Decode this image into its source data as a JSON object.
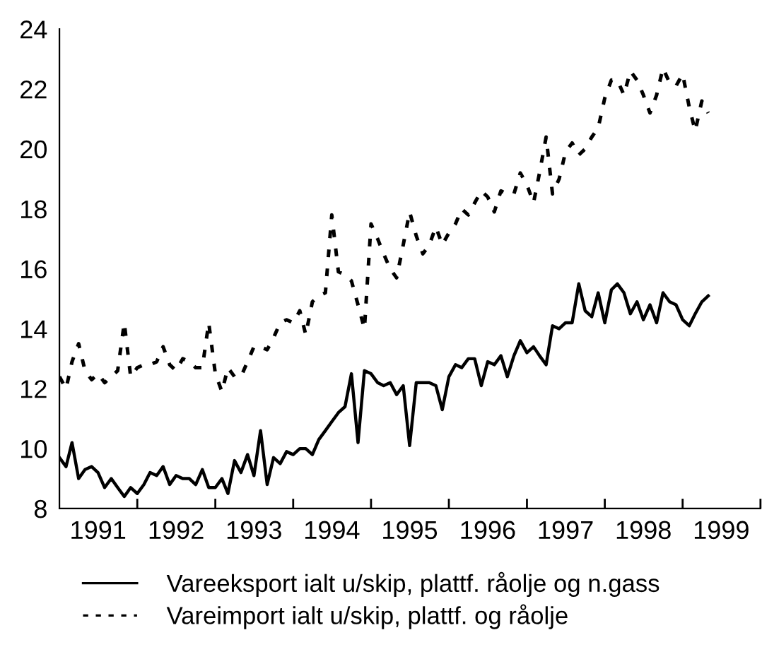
{
  "chart_data": {
    "type": "line",
    "x": [
      "1991-01",
      "1991-02",
      "1991-03",
      "1991-04",
      "1991-05",
      "1991-06",
      "1991-07",
      "1991-08",
      "1991-09",
      "1991-10",
      "1991-11",
      "1991-12",
      "1992-01",
      "1992-02",
      "1992-03",
      "1992-04",
      "1992-05",
      "1992-06",
      "1992-07",
      "1992-08",
      "1992-09",
      "1992-10",
      "1992-11",
      "1992-12",
      "1993-01",
      "1993-02",
      "1993-03",
      "1993-04",
      "1993-05",
      "1993-06",
      "1993-07",
      "1993-08",
      "1993-09",
      "1993-10",
      "1993-11",
      "1993-12",
      "1994-01",
      "1994-02",
      "1994-03",
      "1994-04",
      "1994-05",
      "1994-06",
      "1994-07",
      "1994-08",
      "1994-09",
      "1994-10",
      "1994-11",
      "1994-12",
      "1995-01",
      "1995-02",
      "1995-03",
      "1995-04",
      "1995-05",
      "1995-06",
      "1995-07",
      "1995-08",
      "1995-09",
      "1995-10",
      "1995-11",
      "1995-12",
      "1996-01",
      "1996-02",
      "1996-03",
      "1996-04",
      "1996-05",
      "1996-06",
      "1996-07",
      "1996-08",
      "1996-09",
      "1996-10",
      "1996-11",
      "1996-12",
      "1997-01",
      "1997-02",
      "1997-03",
      "1997-04",
      "1997-05",
      "1997-06",
      "1997-07",
      "1997-08",
      "1997-09",
      "1997-10",
      "1997-11",
      "1997-12",
      "1998-01",
      "1998-02",
      "1998-03",
      "1998-04",
      "1998-05",
      "1998-06",
      "1998-07",
      "1998-08",
      "1998-09",
      "1998-10",
      "1998-11",
      "1998-12",
      "1999-01",
      "1999-02",
      "1999-03",
      "1999-04",
      "1999-05"
    ],
    "series": [
      {
        "name": "Vareeksport ialt u/skip, plattf. råolje og n.gass",
        "color": "#000000",
        "line_style": "solid",
        "values": [
          9.7,
          9.4,
          10.2,
          9.0,
          9.3,
          9.4,
          9.2,
          8.7,
          9.0,
          8.7,
          8.4,
          8.7,
          8.5,
          8.8,
          9.2,
          9.1,
          9.4,
          8.8,
          9.1,
          9.0,
          9.0,
          8.8,
          9.3,
          8.7,
          8.7,
          9.0,
          8.5,
          9.6,
          9.2,
          9.8,
          9.1,
          10.6,
          8.8,
          9.7,
          9.5,
          9.9,
          9.8,
          10.0,
          10.0,
          9.8,
          10.3,
          10.6,
          10.9,
          11.2,
          11.4,
          12.5,
          10.2,
          12.6,
          12.5,
          12.2,
          12.1,
          12.2,
          11.8,
          12.1,
          10.1,
          12.2,
          12.2,
          12.2,
          12.1,
          11.3,
          12.4,
          12.8,
          12.7,
          13.0,
          13.0,
          12.1,
          12.9,
          12.8,
          13.1,
          12.4,
          13.1,
          13.6,
          13.2,
          13.4,
          13.1,
          12.8,
          14.1,
          14.0,
          14.2,
          14.2,
          15.5,
          14.6,
          14.4,
          15.2,
          14.2,
          15.3,
          15.5,
          15.2,
          14.5,
          14.9,
          14.3,
          14.8,
          14.2,
          15.2,
          14.9,
          14.8,
          14.3,
          14.1,
          14.5,
          14.9,
          15.1
        ]
      },
      {
        "name": "Vareimport ialt u/skip, plattf. og råolje",
        "color": "#000000",
        "line_style": "dashed",
        "values": [
          12.4,
          12.0,
          12.9,
          13.5,
          12.6,
          12.3,
          12.5,
          12.2,
          12.4,
          12.6,
          14.2,
          12.4,
          12.7,
          12.8,
          12.8,
          12.9,
          13.4,
          12.8,
          12.6,
          13.0,
          12.9,
          12.7,
          12.7,
          14.2,
          12.5,
          11.9,
          12.7,
          12.4,
          12.4,
          12.9,
          13.4,
          13.4,
          13.3,
          13.7,
          14.2,
          14.3,
          14.2,
          14.6,
          13.8,
          14.9,
          15.1,
          15.2,
          17.8,
          15.9,
          15.8,
          15.6,
          14.8,
          14.0,
          17.5,
          17.0,
          16.5,
          16.0,
          15.7,
          16.8,
          17.9,
          17.1,
          16.5,
          16.8,
          17.4,
          16.8,
          17.2,
          17.5,
          18.0,
          17.8,
          18.2,
          18.6,
          18.4,
          17.9,
          18.6,
          18.5,
          18.5,
          19.2,
          18.8,
          18.2,
          19.2,
          20.4,
          18.5,
          19.0,
          19.9,
          20.2,
          19.8,
          20.0,
          20.4,
          20.7,
          21.7,
          22.3,
          22.3,
          21.8,
          22.6,
          22.3,
          21.8,
          21.2,
          21.8,
          22.7,
          22.2,
          22.1,
          22.5,
          21.4,
          20.6,
          21.6,
          21.2
        ]
      }
    ],
    "xlim": [
      "1991-01",
      "2000-01"
    ],
    "xticks": [
      {
        "value": "1991-07",
        "label": "1991"
      },
      {
        "value": "1992-07",
        "label": "1992"
      },
      {
        "value": "1993-07",
        "label": "1993"
      },
      {
        "value": "1994-07",
        "label": "1994"
      },
      {
        "value": "1995-07",
        "label": "1995"
      },
      {
        "value": "1996-07",
        "label": "1996"
      },
      {
        "value": "1997-07",
        "label": "1997"
      },
      {
        "value": "1998-07",
        "label": "1998"
      },
      {
        "value": "1999-07",
        "label": "1999"
      },
      {
        "value": "1992-01",
        "label": null
      },
      {
        "value": "1993-01",
        "label": null
      },
      {
        "value": "1994-01",
        "label": null
      },
      {
        "value": "1995-01",
        "label": null
      },
      {
        "value": "1996-01",
        "label": null
      },
      {
        "value": "1997-01",
        "label": null
      },
      {
        "value": "1998-01",
        "label": null
      },
      {
        "value": "1999-01",
        "label": null
      },
      {
        "value": "2000-01",
        "label": null
      }
    ],
    "ylim": [
      8,
      24
    ],
    "yticks": [
      8,
      10,
      12,
      14,
      16,
      18,
      20,
      22,
      24
    ],
    "grid": false,
    "legend": "bottom"
  }
}
